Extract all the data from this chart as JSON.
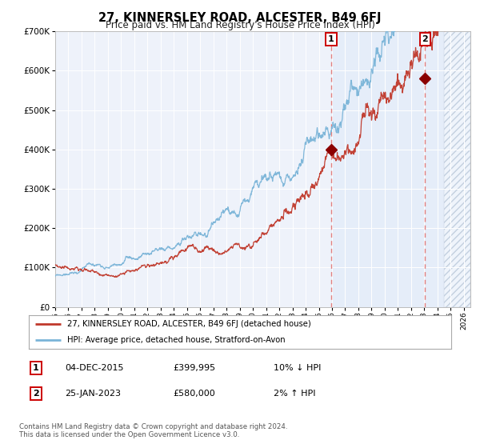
{
  "title": "27, KINNERSLEY ROAD, ALCESTER, B49 6FJ",
  "subtitle": "Price paid vs. HM Land Registry's House Price Index (HPI)",
  "hpi_label": "HPI: Average price, detached house, Stratford-on-Avon",
  "price_label": "27, KINNERSLEY ROAD, ALCESTER, B49 6FJ (detached house)",
  "transaction1": {
    "date": "04-DEC-2015",
    "price": "£399,995",
    "rel": "10% ↓ HPI",
    "year": 2015.92
  },
  "transaction2": {
    "date": "25-JAN-2023",
    "price": "£580,000",
    "rel": "2% ↑ HPI",
    "year": 2023.07
  },
  "footnote1": "Contains HM Land Registry data © Crown copyright and database right 2024.",
  "footnote2": "This data is licensed under the Open Government Licence v3.0.",
  "ylim": [
    0,
    700000
  ],
  "xlim_start": 1995.0,
  "xlim_end": 2026.5,
  "background_color": "#eef2fa",
  "line_color_hpi": "#7ab4d8",
  "line_color_price": "#c0392b",
  "marker_color": "#8b0000",
  "vline_color": "#e08080",
  "shade_color": "#dce8f8",
  "hatch_color": "#b0bccc"
}
